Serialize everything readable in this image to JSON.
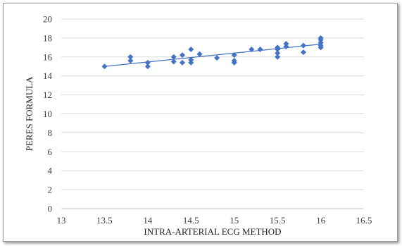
{
  "chart_data": {
    "type": "scatter",
    "title": "",
    "xlabel": "INTRA-ARTERIAL ECG METHOD",
    "ylabel": "PERES FORMULA",
    "xlim": [
      13,
      16.5
    ],
    "ylim": [
      0,
      20
    ],
    "x_ticks": [
      13,
      13.5,
      14,
      14.5,
      15,
      15.5,
      16,
      16.5
    ],
    "x_tick_labels": [
      "13",
      "13.5",
      "14",
      "14.5",
      "15",
      "15.5",
      "16",
      "16.5"
    ],
    "y_ticks": [
      0,
      2,
      4,
      6,
      8,
      10,
      12,
      14,
      16,
      18,
      20
    ],
    "y_tick_labels": [
      "0",
      "2",
      "4",
      "6",
      "8",
      "10",
      "12",
      "14",
      "16",
      "18",
      "20"
    ],
    "grid": "horizontal",
    "legend": "none",
    "marker": "diamond",
    "colors": {
      "marker": "#4472c4",
      "trendline": "#4472c4",
      "grid": "#d9d9d9"
    },
    "series": [
      {
        "points": [
          [
            13.5,
            15.0
          ],
          [
            13.8,
            16.0
          ],
          [
            13.8,
            15.6
          ],
          [
            14.0,
            15.4
          ],
          [
            14.0,
            15.0
          ],
          [
            14.3,
            16.0
          ],
          [
            14.3,
            15.5
          ],
          [
            14.4,
            16.2
          ],
          [
            14.4,
            15.4
          ],
          [
            14.5,
            16.8
          ],
          [
            14.5,
            15.7
          ],
          [
            14.5,
            15.4
          ],
          [
            14.6,
            16.3
          ],
          [
            14.8,
            15.9
          ],
          [
            15.0,
            16.2
          ],
          [
            15.0,
            15.6
          ],
          [
            15.0,
            15.4
          ],
          [
            15.2,
            16.8
          ],
          [
            15.3,
            16.8
          ],
          [
            15.5,
            17.0
          ],
          [
            15.5,
            16.8
          ],
          [
            15.5,
            16.4
          ],
          [
            15.5,
            16.0
          ],
          [
            15.6,
            17.4
          ],
          [
            15.6,
            17.1
          ],
          [
            15.8,
            17.2
          ],
          [
            15.8,
            16.5
          ],
          [
            16.0,
            18.0
          ],
          [
            16.0,
            17.8
          ],
          [
            16.0,
            17.5
          ],
          [
            16.0,
            17.2
          ],
          [
            16.0,
            17.0
          ]
        ]
      }
    ],
    "trendline": {
      "type": "linear",
      "x": [
        13.5,
        16.0
      ],
      "y": [
        15.0,
        17.35
      ]
    }
  }
}
